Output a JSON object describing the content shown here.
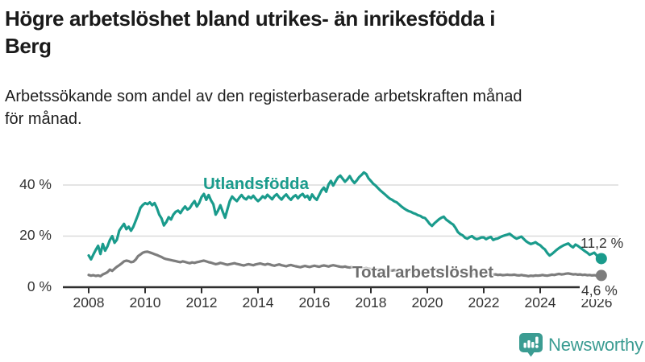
{
  "header": {
    "title_lines": [
      "Högre arbetslöshet bland utrikes- än inrikesfödda i",
      "Berg"
    ],
    "subtitle_lines": [
      "Arbetssökande som andel av den registerbaserade arbetskraften månad",
      "för månad."
    ]
  },
  "chart_data": {
    "type": "line",
    "unit": "%",
    "frequency": "monthly",
    "start": "2008-01",
    "end": "2026-03",
    "grid": "horizontal-only",
    "x_axis": {
      "ticks": [
        2008,
        2010,
        2012,
        2014,
        2016,
        2018,
        2020,
        2022,
        2024,
        2026
      ]
    },
    "y_axis": {
      "range": [
        0,
        47
      ],
      "ticks": [
        {
          "value": 0,
          "label": "0 %"
        },
        {
          "value": 20,
          "label": "20 %"
        },
        {
          "value": 40,
          "label": "40 %"
        }
      ]
    },
    "series": [
      {
        "name": "Utlandsfödda",
        "color": "#1a9b8c",
        "end_label": "11,2 %",
        "end_value": 11.2,
        "values": [
          12.4,
          10.9,
          12.8,
          14.6,
          16.2,
          13.0,
          16.9,
          14.3,
          16.0,
          18.5,
          20.0,
          17.4,
          18.6,
          22.1,
          23.5,
          24.8,
          22.7,
          23.7,
          22.1,
          23.7,
          26.0,
          28.4,
          31.1,
          32.2,
          32.9,
          32.5,
          33.2,
          32.1,
          32.9,
          31.0,
          28.4,
          26.9,
          24.2,
          25.5,
          27.4,
          26.5,
          28.4,
          29.5,
          30.0,
          29.0,
          30.5,
          31.6,
          30.4,
          31.0,
          32.5,
          33.7,
          31.6,
          33.0,
          35.3,
          36.5,
          34.2,
          36.1,
          34.0,
          32.5,
          28.4,
          30.0,
          32.1,
          29.5,
          27.2,
          30.5,
          33.7,
          35.5,
          34.5,
          33.7,
          35.0,
          36.1,
          34.9,
          34.4,
          35.5,
          34.8,
          35.8,
          34.6,
          33.7,
          34.5,
          35.6,
          34.9,
          36.2,
          35.3,
          34.4,
          35.7,
          36.4,
          35.2,
          34.3,
          35.5,
          36.3,
          35.1,
          34.2,
          35.4,
          36.0,
          34.8,
          35.9,
          36.5,
          35.2,
          35.8,
          34.2,
          36.3,
          35.0,
          34.2,
          36.0,
          37.9,
          39.0,
          37.4,
          40.2,
          41.6,
          39.8,
          41.5,
          43.0,
          43.7,
          42.5,
          41.3,
          42.2,
          43.5,
          41.9,
          40.8,
          41.8,
          43.1,
          43.9,
          44.9,
          44.3,
          42.6,
          41.6,
          40.5,
          39.8,
          38.8,
          37.9,
          37.1,
          36.3,
          35.5,
          34.7,
          34.2,
          33.6,
          33.2,
          32.4,
          31.6,
          30.9,
          30.3,
          29.8,
          29.5,
          29.0,
          28.7,
          28.2,
          27.9,
          27.3,
          27.1,
          26.0,
          24.8,
          24.0,
          25.0,
          25.8,
          26.6,
          27.2,
          27.6,
          26.5,
          25.8,
          25.1,
          24.5,
          23.2,
          21.6,
          20.8,
          20.3,
          19.4,
          19.0,
          19.6,
          20.0,
          19.2,
          18.8,
          19.1,
          19.5,
          19.5,
          18.8,
          19.3,
          19.7,
          18.5,
          18.9,
          19.1,
          19.6,
          20.0,
          20.3,
          20.6,
          20.9,
          20.2,
          19.5,
          19.0,
          19.4,
          19.8,
          18.9,
          18.0,
          17.4,
          16.9,
          17.2,
          17.6,
          16.9,
          16.4,
          15.5,
          14.8,
          13.4,
          12.4,
          13.0,
          13.8,
          14.6,
          15.3,
          15.9,
          16.4,
          16.8,
          17.1,
          16.2,
          15.6,
          16.7,
          16.2,
          15.5,
          14.8,
          14.1,
          13.5,
          12.7,
          13.1,
          13.5,
          12.5,
          11.7,
          11.2
        ]
      },
      {
        "name": "Total arbetslöshet",
        "color": "#7d7d7d",
        "end_label": "4,6 %",
        "end_value": 4.6,
        "values": [
          4.8,
          4.5,
          4.7,
          4.4,
          4.6,
          4.3,
          5.0,
          5.4,
          5.9,
          6.9,
          6.4,
          7.2,
          8.0,
          8.6,
          9.3,
          10.1,
          10.4,
          10.2,
          9.8,
          10.0,
          10.8,
          12.2,
          12.8,
          13.5,
          13.8,
          13.9,
          13.6,
          13.3,
          12.9,
          12.6,
          12.2,
          11.8,
          11.3,
          11.0,
          10.8,
          10.6,
          10.4,
          10.2,
          10.0,
          9.8,
          10.1,
          9.9,
          9.6,
          9.4,
          9.7,
          9.5,
          9.8,
          10.0,
          10.2,
          10.4,
          10.1,
          9.8,
          9.6,
          9.3,
          9.0,
          9.2,
          9.5,
          9.3,
          9.0,
          8.8,
          9.0,
          9.2,
          9.4,
          9.1,
          8.9,
          8.7,
          8.5,
          8.8,
          9.0,
          8.8,
          8.6,
          8.9,
          9.1,
          9.3,
          9.0,
          8.8,
          9.1,
          8.9,
          8.6,
          8.4,
          8.7,
          8.9,
          8.6,
          8.4,
          8.2,
          8.5,
          8.7,
          8.4,
          8.2,
          8.0,
          7.8,
          8.1,
          8.3,
          8.1,
          7.9,
          8.2,
          8.4,
          8.2,
          8.0,
          8.3,
          8.5,
          8.3,
          8.1,
          8.4,
          8.6,
          8.4,
          8.2,
          8.0,
          7.9,
          8.1,
          7.8,
          7.7,
          7.9,
          7.6,
          7.5,
          7.7,
          7.5,
          7.3,
          7.5,
          7.2,
          7.1,
          7.3,
          7.0,
          6.9,
          7.1,
          6.8,
          6.7,
          6.9,
          6.6,
          6.5,
          6.7,
          6.4,
          6.3,
          6.5,
          6.2,
          6.1,
          6.3,
          6.0,
          5.9,
          6.1,
          5.9,
          5.8,
          6.0,
          6.2,
          6.4,
          6.6,
          6.9,
          7.1,
          6.9,
          6.7,
          6.8,
          6.6,
          6.4,
          6.2,
          6.3,
          6.1,
          6.2,
          6.0,
          5.8,
          5.9,
          5.7,
          5.5,
          5.6,
          5.4,
          5.3,
          5.4,
          5.2,
          5.3,
          5.4,
          5.2,
          5.0,
          5.1,
          4.9,
          5.0,
          4.8,
          4.9,
          4.7,
          4.8,
          4.9,
          4.8,
          4.8,
          4.9,
          4.7,
          4.6,
          4.8,
          4.6,
          4.5,
          4.3,
          4.5,
          4.4,
          4.6,
          4.5,
          4.6,
          4.8,
          4.6,
          4.5,
          4.7,
          4.9,
          4.8,
          5.0,
          5.2,
          5.0,
          5.1,
          5.3,
          5.4,
          5.2,
          5.0,
          5.1,
          4.9,
          5.0,
          4.8,
          4.9,
          4.7,
          4.8,
          4.6,
          4.7,
          4.5,
          4.6,
          4.6
        ]
      }
    ],
    "colors": {
      "grid": "#dbdbdb",
      "axis": "#2f2f2f",
      "tick_text": "#333333"
    }
  },
  "footer": {
    "brand": "Newsworthy",
    "brand_color": "#3b9c92",
    "logo_icon": "bar-chart-speech-bubble-icon"
  }
}
